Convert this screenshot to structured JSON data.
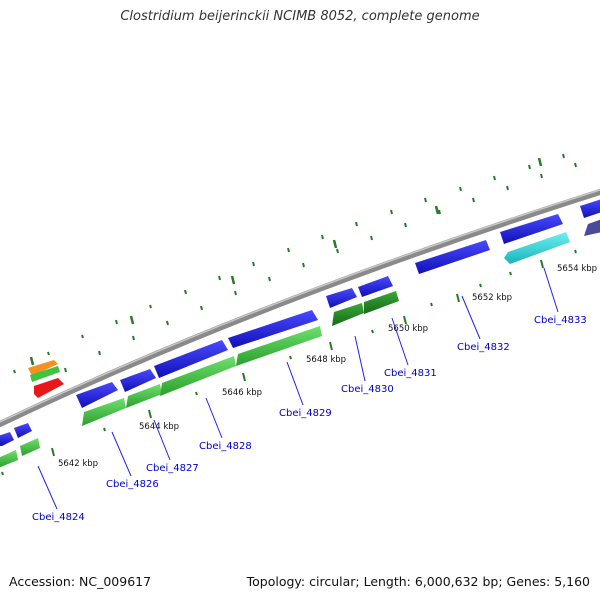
{
  "title": "Clostridium beijerinckii NCIMB 8052, complete genome",
  "footer": {
    "accession": "Accession: NC_009617",
    "topology": "Topology: circular; Length: 6,000,632 bp; Genes: 5,160"
  },
  "colors": {
    "backbone": "#8a8a8a",
    "forward_cds": "#1c1ce0",
    "reverse_cds_light": "#3fc43f",
    "reverse_cds_dark": "#1e8f1e",
    "cyan_feature": "#22cfd6",
    "orange_feature": "#f5911e",
    "red_feature": "#e81818",
    "slate_feature": "#4a4a9a",
    "tick": "#2a7a2a",
    "gene_label": "#0000cc",
    "leader_line": "#2222ee"
  },
  "scale_labels": [
    "5642 kbp",
    "5644 kbp",
    "5646 kbp",
    "5648 kbp",
    "5650 kbp",
    "5652 kbp",
    "5654 kbp"
  ],
  "gene_labels": [
    "Cbei_4824",
    "Cbei_4826",
    "Cbei_4827",
    "Cbei_4828",
    "Cbei_4829",
    "Cbei_4830",
    "Cbei_4831",
    "Cbei_4832",
    "Cbei_4833"
  ]
}
